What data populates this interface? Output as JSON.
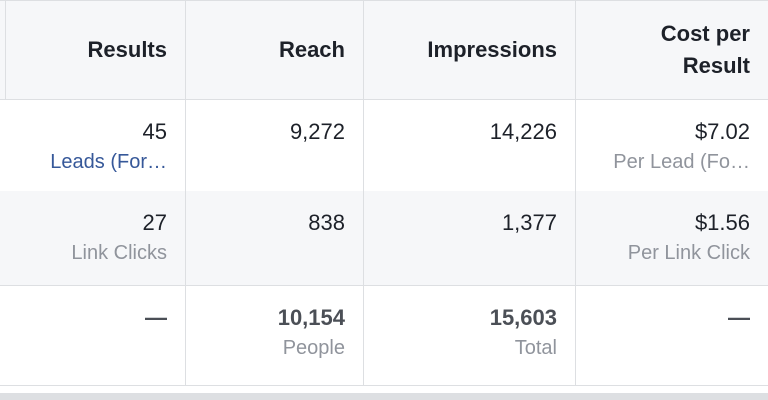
{
  "table": {
    "columns": [
      "Results",
      "Reach",
      "Impressions",
      "Cost per Result"
    ],
    "rows": [
      [
        {
          "value": "45",
          "sub": "Leads (For…"
        },
        {
          "value": "9,272"
        },
        {
          "value": "14,226"
        },
        {
          "value": "$7.02",
          "sub": "Per Lead (Fo…"
        }
      ],
      [
        {
          "value": "27",
          "sub": "Link Clicks"
        },
        {
          "value": "838"
        },
        {
          "value": "1,377"
        },
        {
          "value": "$1.56",
          "sub": "Per Link Click"
        }
      ]
    ],
    "total": [
      {
        "value": "—"
      },
      {
        "value": "10,154",
        "sub": "People"
      },
      {
        "value": "15,603",
        "sub": "Total"
      },
      {
        "value": "—"
      }
    ]
  }
}
